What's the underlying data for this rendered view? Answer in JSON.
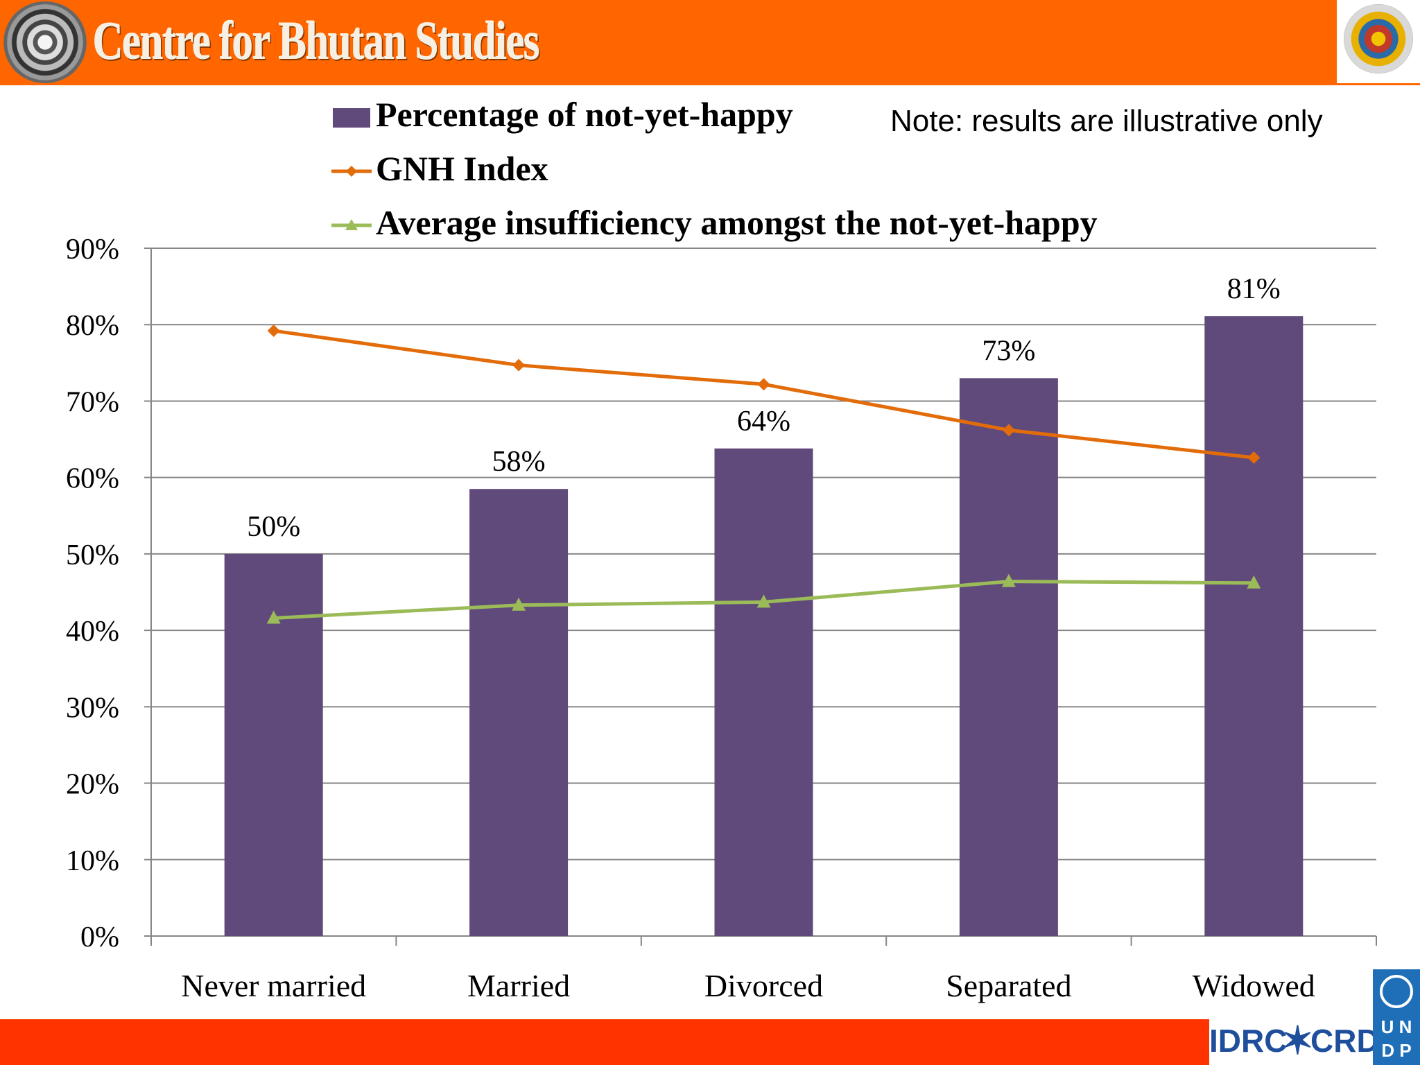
{
  "header": {
    "title": "Centre for Bhutan Studies",
    "background_color": "#ff6600",
    "logo_icon": "dharma-wheel-logo",
    "emblem_icon": "bhutan-national-emblem"
  },
  "note": "Note: results are illustrative only",
  "chart_data": {
    "type": "bar",
    "categories": [
      "Never married",
      "Married",
      "Divorced",
      "Separated",
      "Widowed"
    ],
    "series": [
      {
        "name": "Percentage of not-yet-happy",
        "type": "bar",
        "color": "#604a7b",
        "values": [
          50,
          58.5,
          63.8,
          73,
          81.1
        ],
        "data_labels": [
          "50%",
          "58%",
          "64%",
          "73%",
          "81%"
        ]
      },
      {
        "name": "GNH Index",
        "type": "line",
        "marker": "diamond",
        "color": "#e36c0a",
        "values": [
          79.2,
          74.7,
          72.2,
          66.2,
          62.6
        ]
      },
      {
        "name": "Average insufficiency amongst the not-yet-happy",
        "type": "line",
        "marker": "triangle",
        "color": "#9bbb59",
        "values": [
          41.6,
          43.3,
          43.7,
          46.4,
          46.2
        ]
      }
    ],
    "yticks": [
      "0%",
      "10%",
      "20%",
      "30%",
      "40%",
      "50%",
      "60%",
      "70%",
      "80%",
      "90%"
    ],
    "ylim": [
      0,
      90
    ],
    "grid": true,
    "legend_position": "top"
  },
  "footer": {
    "bar_color": "#ff3300",
    "idrc_left": "IDRC",
    "idrc_right": "CRDI",
    "undp_letters": "U N D P"
  }
}
